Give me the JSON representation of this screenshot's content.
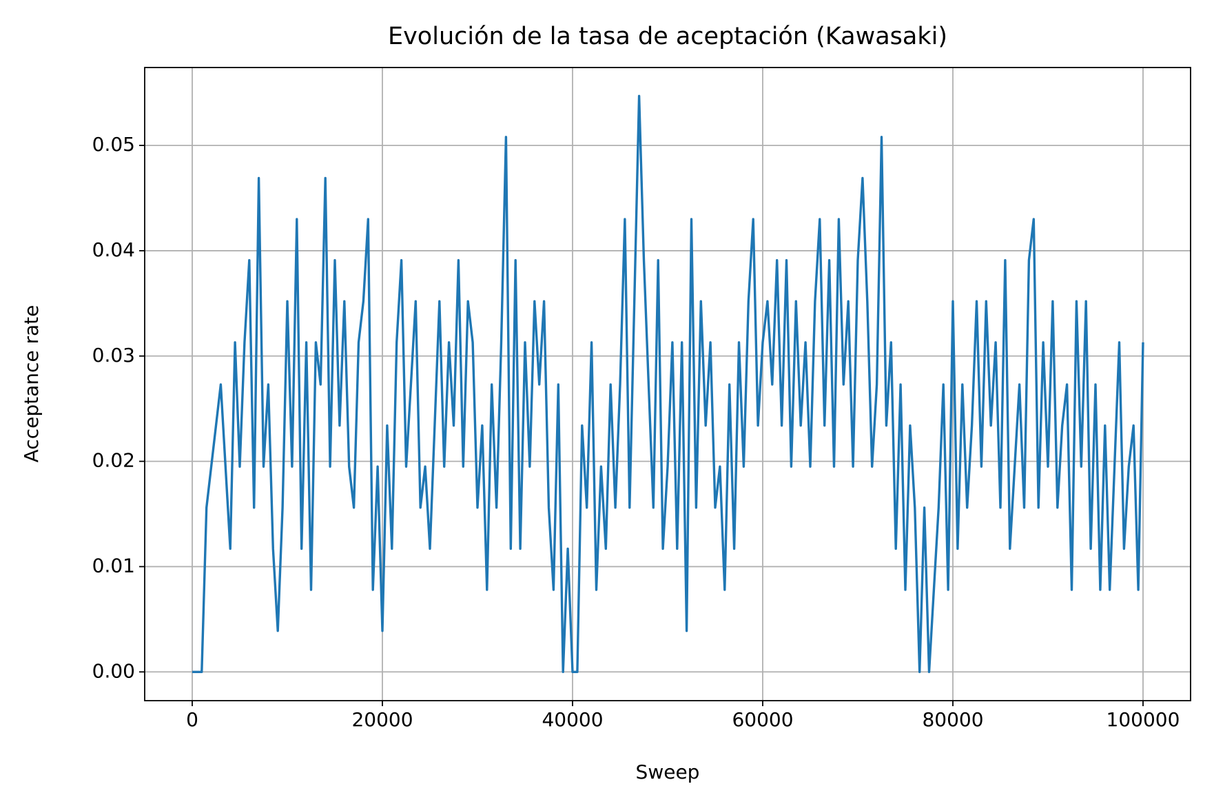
{
  "chart_data": {
    "type": "line",
    "title": "Evolución de la tasa de aceptación (Kawasaki)",
    "x_label": "Sweep",
    "y_label": "Acceptance rate",
    "color": "#1f77b4",
    "grid": true,
    "xlim": [
      -5000,
      105000
    ],
    "ylim": [
      -0.00273,
      0.0574
    ],
    "xticks": [
      0,
      20000,
      40000,
      60000,
      80000,
      100000
    ],
    "yticks": [
      {
        "value": 0,
        "label": "0.00"
      },
      0.01,
      0.02,
      0.03,
      0.04,
      0.05
    ],
    "x": [
      0,
      500,
      1000,
      1500,
      2000,
      2500,
      3000,
      3500,
      4000,
      4500,
      5000,
      5500,
      6000,
      6500,
      7000,
      7500,
      8000,
      8500,
      9000,
      9500,
      10000,
      10500,
      11000,
      11500,
      12000,
      12500,
      13000,
      13500,
      14000,
      14500,
      15000,
      15500,
      16000,
      16500,
      17000,
      17500,
      18000,
      18500,
      19000,
      19500,
      20000,
      20500,
      21000,
      21500,
      22000,
      22500,
      23000,
      23500,
      24000,
      24500,
      25000,
      25500,
      26000,
      26500,
      27000,
      27500,
      28000,
      28500,
      29000,
      29500,
      30000,
      30500,
      31000,
      31500,
      32000,
      32500,
      33000,
      33500,
      34000,
      34500,
      35000,
      35500,
      36000,
      36500,
      37000,
      37500,
      38000,
      38500,
      39000,
      39500,
      40000,
      40500,
      41000,
      41500,
      42000,
      42500,
      43000,
      43500,
      44000,
      44500,
      45000,
      45500,
      46000,
      46500,
      47000,
      47500,
      48000,
      48500,
      49000,
      49500,
      50000,
      50500,
      51000,
      51500,
      52000,
      52500,
      53000,
      53500,
      54000,
      54500,
      55000,
      55500,
      56000,
      56500,
      57000,
      57500,
      58000,
      58500,
      59000,
      59500,
      60000,
      60500,
      61000,
      61500,
      62000,
      62500,
      63000,
      63500,
      64000,
      64500,
      65000,
      65500,
      66000,
      66500,
      67000,
      67500,
      68000,
      68500,
      69000,
      69500,
      70000,
      70500,
      71000,
      71500,
      72000,
      72500,
      73000,
      73500,
      74000,
      74500,
      75000,
      75500,
      76000,
      76500,
      77000,
      77500,
      78000,
      78500,
      79000,
      79500,
      80000,
      80500,
      81000,
      81500,
      82000,
      82500,
      83000,
      83500,
      84000,
      84500,
      85000,
      85500,
      86000,
      86500,
      87000,
      87500,
      88000,
      88500,
      89000,
      89500,
      90000,
      90500,
      91000,
      91500,
      92000,
      92500,
      93000,
      93500,
      94000,
      94500,
      95000,
      95500,
      96000,
      96500,
      97000,
      97500,
      98000,
      98500,
      99000,
      99500,
      100000
    ],
    "values": [
      0,
      0,
      0,
      0.0156,
      0.0195,
      0.0234,
      0.0273,
      0.0195,
      0.0117,
      0.0313,
      0.0195,
      0.0313,
      0.0391,
      0.0156,
      0.0469,
      0.0195,
      0.0273,
      0.0117,
      0.0039,
      0.0156,
      0.0352,
      0.0195,
      0.043,
      0.0117,
      0.0313,
      0.0078,
      0.0313,
      0.0273,
      0.0469,
      0.0195,
      0.0391,
      0.0234,
      0.0352,
      0.0195,
      0.0156,
      0.0313,
      0.0352,
      0.043,
      0.0078,
      0.0195,
      0.0039,
      0.0234,
      0.0117,
      0.0313,
      0.0391,
      0.0195,
      0.0273,
      0.0352,
      0.0156,
      0.0195,
      0.0117,
      0.0234,
      0.0352,
      0.0195,
      0.0313,
      0.0234,
      0.0391,
      0.0195,
      0.0352,
      0.0313,
      0.0156,
      0.0234,
      0.0078,
      0.0273,
      0.0156,
      0.0313,
      0.0508,
      0.0117,
      0.0391,
      0.0117,
      0.0313,
      0.0195,
      0.0352,
      0.0273,
      0.0352,
      0.0156,
      0.0078,
      0.0273,
      0,
      0.0117,
      0,
      0,
      0.0234,
      0.0156,
      0.0313,
      0.0078,
      0.0195,
      0.0117,
      0.0273,
      0.0156,
      0.0273,
      0.043,
      0.0156,
      0.0352,
      0.0547,
      0.0391,
      0.0273,
      0.0156,
      0.0391,
      0.0117,
      0.0195,
      0.0313,
      0.0117,
      0.0313,
      0.0039,
      0.043,
      0.0156,
      0.0352,
      0.0234,
      0.0313,
      0.0156,
      0.0195,
      0.0078,
      0.0273,
      0.0117,
      0.0313,
      0.0195,
      0.0352,
      0.043,
      0.0234,
      0.0313,
      0.0352,
      0.0273,
      0.0391,
      0.0234,
      0.0391,
      0.0195,
      0.0352,
      0.0234,
      0.0313,
      0.0195,
      0.0352,
      0.043,
      0.0234,
      0.0391,
      0.0195,
      0.043,
      0.0273,
      0.0352,
      0.0195,
      0.0391,
      0.0469,
      0.0352,
      0.0195,
      0.0273,
      0.0508,
      0.0234,
      0.0313,
      0.0117,
      0.0273,
      0.0078,
      0.0234,
      0.0156,
      0,
      0.0156,
      0,
      0.0078,
      0.0156,
      0.0273,
      0.0078,
      0.0352,
      0.0117,
      0.0273,
      0.0156,
      0.0234,
      0.0352,
      0.0195,
      0.0352,
      0.0234,
      0.0313,
      0.0156,
      0.0391,
      0.0117,
      0.0195,
      0.0273,
      0.0156,
      0.0391,
      0.043,
      0.0156,
      0.0313,
      0.0195,
      0.0352,
      0.0156,
      0.0234,
      0.0273,
      0.0078,
      0.0352,
      0.0195,
      0.0352,
      0.0117,
      0.0273,
      0.0078,
      0.0234,
      0.0078,
      0.0195,
      0.0313,
      0.0117,
      0.0195,
      0.0234,
      0.0078,
      0.0313
    ]
  }
}
